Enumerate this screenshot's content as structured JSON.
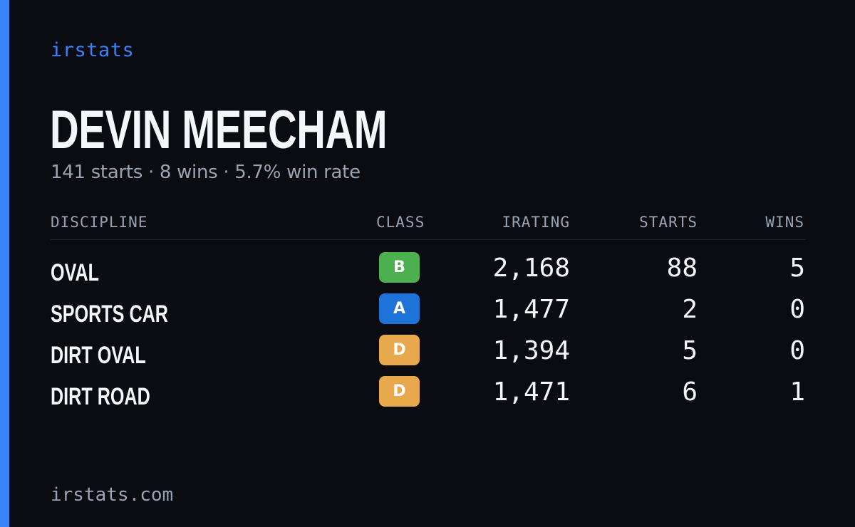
{
  "brand": "irstats",
  "driver": {
    "name": "DEVIN MEECHAM",
    "summary": "141 starts · 8 wins · 5.7% win rate"
  },
  "table": {
    "headers": {
      "discipline": "DISCIPLINE",
      "class": "CLASS",
      "irating": "IRATING",
      "starts": "STARTS",
      "wins": "WINS"
    },
    "rows": [
      {
        "discipline": "OVAL",
        "class": "B",
        "class_color": "#4caf50",
        "irating": "2,168",
        "starts": "88",
        "wins": "5"
      },
      {
        "discipline": "SPORTS CAR",
        "class": "A",
        "class_color": "#1e73d8",
        "irating": "1,477",
        "starts": "2",
        "wins": "0"
      },
      {
        "discipline": "DIRT OVAL",
        "class": "D",
        "class_color": "#e8a84c",
        "irating": "1,394",
        "starts": "5",
        "wins": "0"
      },
      {
        "discipline": "DIRT ROAD",
        "class": "D",
        "class_color": "#e8a84c",
        "irating": "1,471",
        "starts": "6",
        "wins": "1"
      }
    ]
  },
  "footer": "irstats.com",
  "colors": {
    "accent": "#3b82f6",
    "background": "#0a0c12",
    "text_primary": "#f4f6fa",
    "text_muted": "#9aa3b2"
  }
}
